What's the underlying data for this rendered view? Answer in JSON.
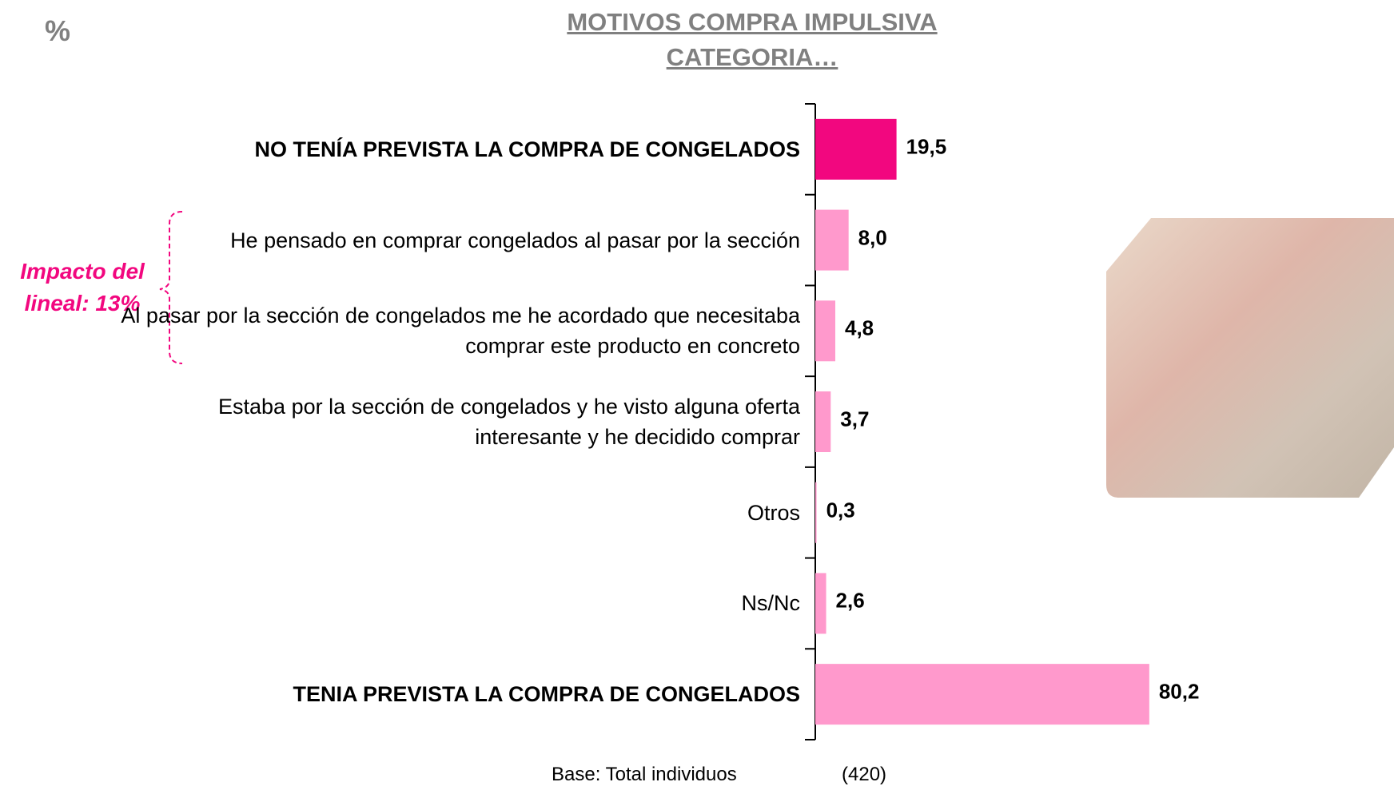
{
  "percent_label": "%",
  "chart_data": {
    "type": "hbar",
    "title": "MOTIVOS COMPRA IMPULSIVA CATEGORIA…",
    "categories": [
      "NO TENÍA PREVISTA LA COMPRA DE CONGELADOS",
      "He pensado en comprar congelados al pasar por la sección",
      "Al pasar por la sección de congelados me he acordado que necesitaba comprar este producto en concreto",
      "Estaba por la sección de congelados y he visto alguna oferta interesante y he decidido comprar",
      "Otros",
      "Ns/Nc",
      "TENIA PREVISTA LA COMPRA DE CONGELADOS"
    ],
    "values": [
      19.5,
      8.0,
      4.8,
      3.7,
      0.3,
      2.6,
      80.2
    ],
    "value_labels": [
      "19,5",
      "8,0",
      "4,8",
      "3,7",
      "0,3",
      "2,6",
      "80,2"
    ],
    "colors": [
      "#f2077f",
      "#ff99cc",
      "#ff99cc",
      "#ff99cc",
      "#ff99cc",
      "#ff99cc",
      "#ff99cc"
    ],
    "xlim": [
      0,
      100
    ],
    "annotation": "Impacto del lineal: 13%",
    "base_label": "Base: Total individuos",
    "base_value": "(420)"
  }
}
